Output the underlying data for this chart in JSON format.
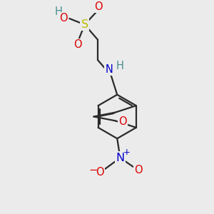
{
  "bg_color": "#ebebeb",
  "bond_color": "#2a2a2a",
  "bond_width": 1.6,
  "colors": {
    "H": "#4a9090",
    "O": "#dd0000",
    "N_amine": "#0000cc",
    "N_nitro": "#0000cc",
    "S": "#bbbb00",
    "O_nitro": "#dd0000",
    "O_sulfon": "#dd0000"
  },
  "font_size": 10.5
}
